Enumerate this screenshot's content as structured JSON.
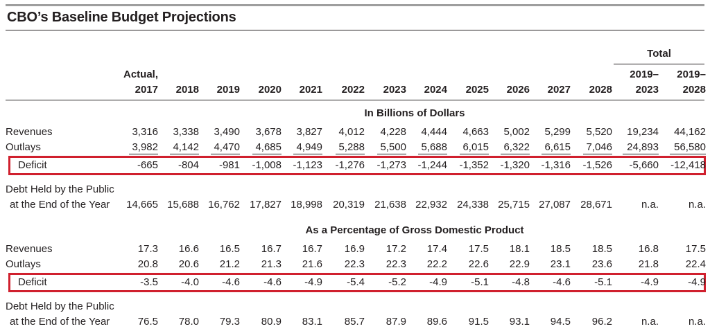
{
  "title": "CBO’s Baseline Budget Projections",
  "header": {
    "total_label": "Total",
    "columns": [
      {
        "line1": "Actual,",
        "line2": "2017"
      },
      {
        "line1": "",
        "line2": "2018"
      },
      {
        "line1": "",
        "line2": "2019"
      },
      {
        "line1": "",
        "line2": "2020"
      },
      {
        "line1": "",
        "line2": "2021"
      },
      {
        "line1": "",
        "line2": "2022"
      },
      {
        "line1": "",
        "line2": "2023"
      },
      {
        "line1": "",
        "line2": "2024"
      },
      {
        "line1": "",
        "line2": "2025"
      },
      {
        "line1": "",
        "line2": "2026"
      },
      {
        "line1": "",
        "line2": "2027"
      },
      {
        "line1": "",
        "line2": "2028"
      },
      {
        "line1": "2019–",
        "line2": "2023"
      },
      {
        "line1": "2019–",
        "line2": "2028"
      }
    ]
  },
  "sections": [
    {
      "title": "In Billions of Dollars",
      "rows": [
        {
          "label": "Revenues",
          "values": [
            "3,316",
            "3,338",
            "3,490",
            "3,678",
            "3,827",
            "4,012",
            "4,228",
            "4,444",
            "4,663",
            "5,002",
            "5,299",
            "5,520",
            "19,234",
            "44,162"
          ]
        },
        {
          "label": "Outlays",
          "values": [
            "3,982",
            "4,142",
            "4,470",
            "4,685",
            "4,949",
            "5,288",
            "5,500",
            "5,688",
            "6,015",
            "6,322",
            "6,615",
            "7,046",
            "24,893",
            "56,580"
          ]
        },
        {
          "label": "Deficit",
          "values": [
            "-665",
            "-804",
            "-981",
            "-1,008",
            "-1,123",
            "-1,276",
            "-1,273",
            "-1,244",
            "-1,352",
            "-1,320",
            "-1,316",
            "-1,526",
            "-5,660",
            "-12,418"
          ]
        },
        {
          "label_line1": "Debt Held by the Public",
          "label": "at the End of the Year",
          "values": [
            "14,665",
            "15,688",
            "16,762",
            "17,827",
            "18,998",
            "20,319",
            "21,638",
            "22,932",
            "24,338",
            "25,715",
            "27,087",
            "28,671",
            "n.a.",
            "n.a."
          ]
        }
      ]
    },
    {
      "title": "As a Percentage of Gross Domestic Product",
      "rows": [
        {
          "label": "Revenues",
          "values": [
            "17.3",
            "16.6",
            "16.5",
            "16.7",
            "16.7",
            "16.9",
            "17.2",
            "17.4",
            "17.5",
            "18.1",
            "18.5",
            "18.5",
            "16.8",
            "17.5"
          ]
        },
        {
          "label": "Outlays",
          "values": [
            "20.8",
            "20.6",
            "21.2",
            "21.3",
            "21.6",
            "22.3",
            "22.3",
            "22.2",
            "22.6",
            "22.9",
            "23.1",
            "23.6",
            "21.8",
            "22.4"
          ]
        },
        {
          "label": "Deficit",
          "values": [
            "-3.5",
            "-4.0",
            "-4.6",
            "-4.6",
            "-4.9",
            "-5.4",
            "-5.2",
            "-4.9",
            "-5.1",
            "-4.8",
            "-4.6",
            "-5.1",
            "-4.9",
            "-4.9"
          ]
        },
        {
          "label_line1": "Debt Held by the Public",
          "label": "at the End of the Year",
          "values": [
            "76.5",
            "78.0",
            "79.3",
            "80.9",
            "83.1",
            "85.7",
            "87.9",
            "89.6",
            "91.5",
            "93.1",
            "94.5",
            "96.2",
            "n.a.",
            "n.a."
          ]
        }
      ]
    }
  ],
  "highlight_color": "#d0202e"
}
